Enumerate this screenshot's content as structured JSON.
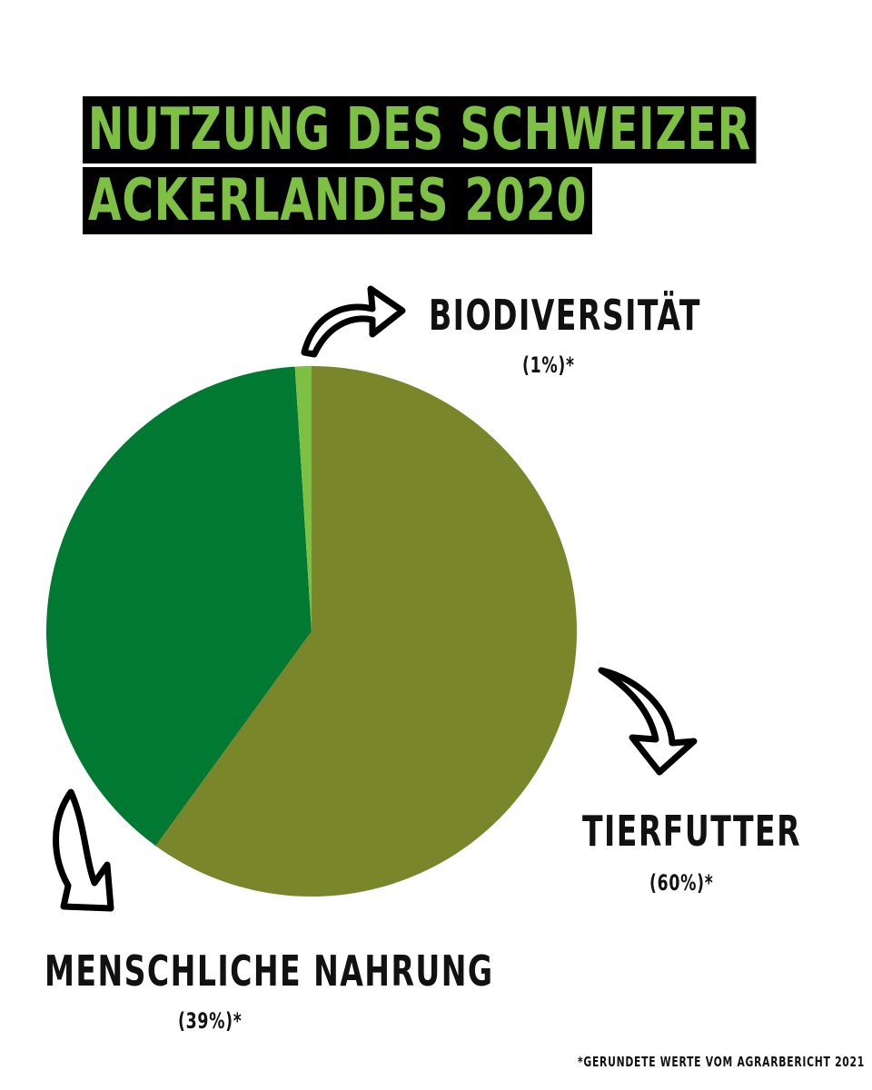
{
  "title": [
    "NUTZUNG DES SCHWEIZER",
    "ACKERLANDES 2020"
  ],
  "colors": {
    "title_text": "#7dc043",
    "title_background": "#000000",
    "tierfutter": "#7a862a",
    "menschliche_nahrung": "#007a33",
    "biodiversitaet": "#7dc043"
  },
  "labels": {
    "biodiversitaet": {
      "name": "BIODIVERSITÄT",
      "pct": "(1%)*"
    },
    "tierfutter": {
      "name": "TIERFUTTER",
      "pct": "(60%)*"
    },
    "menschliche_nahrung": {
      "name": "MENSCHLICHE NAHRUNG",
      "pct": "(39%)*"
    }
  },
  "footnote": "*GERUNDETE WERTE VOM AGRARBERICHT 2021",
  "chart_data": {
    "type": "pie",
    "title": "NUTZUNG DES SCHWEIZER ACKERLANDES 2020",
    "categories": [
      "Tierfutter",
      "Menschliche Nahrung",
      "Biodiversität"
    ],
    "values": [
      60,
      39,
      1
    ],
    "unit": "%",
    "colors": [
      "#7a862a",
      "#007a33",
      "#7dc043"
    ],
    "start": "top, clockwise",
    "note": "*Gerundete Werte vom Agrarbericht 2021"
  }
}
